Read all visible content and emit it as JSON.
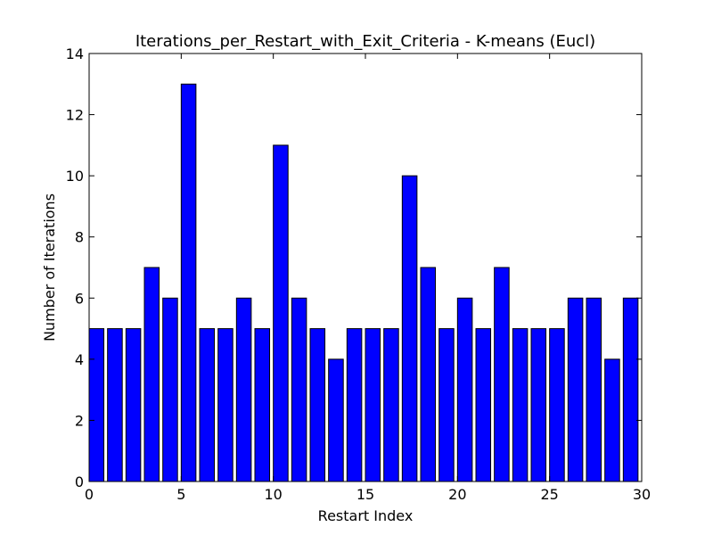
{
  "chart_data": {
    "type": "bar",
    "title": "Iterations_per_Restart_with_Exit_Criteria - K-means (Eucl)",
    "xlabel": "Restart Index",
    "ylabel": "Number of Iterations",
    "x": [
      0,
      1,
      2,
      3,
      4,
      5,
      6,
      7,
      8,
      9,
      10,
      11,
      12,
      13,
      14,
      15,
      16,
      17,
      18,
      19,
      20,
      21,
      22,
      23,
      24,
      25,
      26,
      27,
      28,
      29
    ],
    "values": [
      5,
      5,
      5,
      7,
      6,
      13,
      5,
      5,
      6,
      5,
      11,
      6,
      5,
      4,
      5,
      5,
      5,
      10,
      7,
      5,
      6,
      5,
      7,
      5,
      5,
      5,
      6,
      6,
      4,
      6
    ],
    "bar_width": 0.8,
    "xlim": [
      0,
      30
    ],
    "ylim": [
      0,
      14
    ],
    "xticks": [
      0,
      5,
      10,
      15,
      20,
      25,
      30
    ],
    "yticks": [
      0,
      2,
      4,
      6,
      8,
      10,
      12,
      14
    ],
    "bar_color": "#0000ff",
    "edge_color": "#000000",
    "grid": false,
    "legend": "none"
  }
}
